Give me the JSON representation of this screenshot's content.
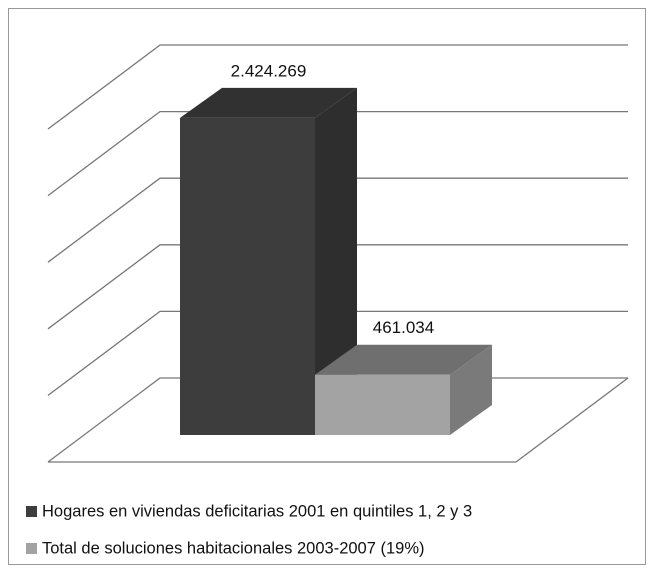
{
  "chart_data": {
    "type": "bar3d",
    "series": [
      {
        "name": "Hogares en viviendas deficitarias 2001 en quintiles 1, 2 y 3",
        "color": "#3d3d3d",
        "values": [
          2424269
        ],
        "value_labels": [
          "2.424.269"
        ]
      },
      {
        "name": "Total de soluciones habitacionales 2003-2007 (19%)",
        "color": "#a3a3a3",
        "values": [
          461034
        ],
        "value_labels": [
          "461.034"
        ]
      }
    ],
    "ylim": [
      0,
      2500000
    ],
    "yticks": [
      0,
      500000,
      1000000,
      1500000,
      2000000,
      2500000
    ],
    "grid": true,
    "legend": "bottom"
  }
}
